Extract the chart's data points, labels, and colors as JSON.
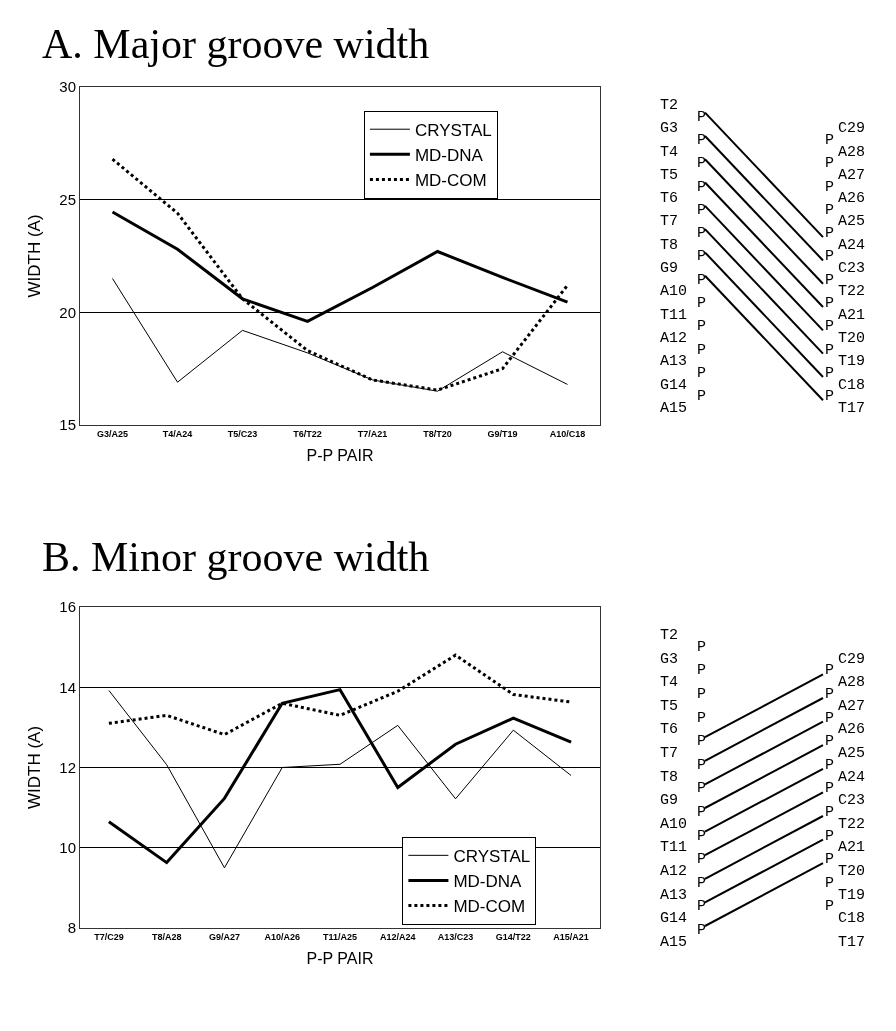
{
  "chart_data": [
    {
      "type": "line",
      "title": "A. Major groove width",
      "xlabel": "P-P PAIR",
      "ylabel": "WIDTH (A)",
      "categories": [
        "G3/A25",
        "T4/A24",
        "T5/C23",
        "T6/T22",
        "T7/A21",
        "T8/T20",
        "G9/T19",
        "A10/C18"
      ],
      "ylim": [
        15,
        30
      ],
      "yticks": [
        15,
        20,
        25,
        30
      ],
      "grid": "y",
      "legend": "top right",
      "series": [
        {
          "name": "CRYSTAL",
          "color": "#000000",
          "line_style": "solid",
          "values": [
            21.5,
            16.9,
            19.2,
            18.2,
            17.0,
            16.5,
            18.25,
            16.8
          ]
        },
        {
          "name": "MD-DNA",
          "color": "#000000",
          "line_style": "solid",
          "values": [
            24.45,
            22.8,
            20.6,
            19.6,
            21.1,
            22.7,
            21.55,
            20.45
          ]
        },
        {
          "name": "MD-COM",
          "color": "#000000",
          "line_style": "dotted",
          "values": [
            26.8,
            24.4,
            20.6,
            18.3,
            17.0,
            16.55,
            17.5,
            21.2
          ]
        }
      ]
    },
    {
      "type": "other",
      "categories": [
        "T2",
        "G3",
        "T4",
        "T5",
        "T6",
        "T7",
        "T8",
        "G9",
        "A10",
        "T11",
        "A12",
        "A13",
        "G14",
        "A15"
      ],
      "y2_categories": [
        "C29",
        "A28",
        "A27",
        "A26",
        "A25",
        "A24",
        "C23",
        "T22",
        "A21",
        "T20",
        "T19",
        "C18",
        "T17"
      ],
      "annotations": [
        "P"
      ]
    },
    {
      "type": "line",
      "title": "B. Minor groove width",
      "xlabel": "P-P PAIR",
      "ylabel": "WIDTH (A)",
      "categories": [
        "T7/C29",
        "T8/A28",
        "G9/A27",
        "A10/A26",
        "T11/A25",
        "A12/A24",
        "A13/C23",
        "G14/T22",
        "A15/A21"
      ],
      "ylim": [
        8,
        16
      ],
      "yticks": [
        8,
        10,
        12,
        14,
        16
      ],
      "grid": "y",
      "legend": "bottom right",
      "series": [
        {
          "name": "CRYSTAL",
          "color": "#000000",
          "line_style": "solid",
          "values": [
            13.92,
            12.07,
            9.5,
            12.0,
            12.08,
            13.05,
            11.22,
            12.93,
            11.8
          ]
        },
        {
          "name": "MD-DNA",
          "color": "#000000",
          "line_style": "solid",
          "values": [
            10.65,
            9.63,
            11.23,
            13.6,
            13.94,
            11.5,
            12.58,
            13.23,
            12.63
          ]
        },
        {
          "name": "MD-COM",
          "color": "#000000",
          "line_style": "dotted",
          "values": [
            13.1,
            13.3,
            12.82,
            13.6,
            13.3,
            13.9,
            14.8,
            13.82,
            13.63
          ]
        }
      ]
    },
    {
      "type": "other",
      "categories": [
        "T2",
        "G3",
        "T4",
        "T5",
        "T6",
        "T7",
        "T8",
        "G9",
        "A10",
        "T11",
        "A12",
        "A13",
        "G14",
        "A15"
      ],
      "y2_categories": [
        "C29",
        "A28",
        "A27",
        "A26",
        "A25",
        "A24",
        "C23",
        "T22",
        "A21",
        "T20",
        "T19",
        "C18",
        "T17"
      ],
      "annotations": [
        "P"
      ]
    }
  ]
}
